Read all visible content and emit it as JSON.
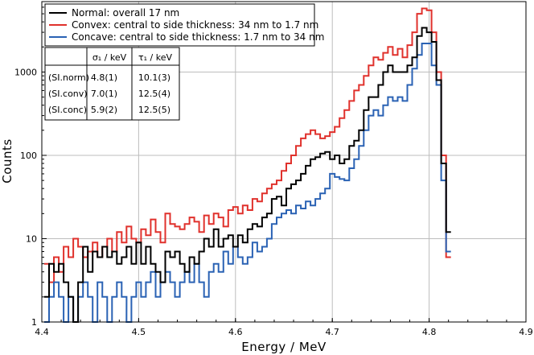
{
  "chart_data": {
    "type": "line",
    "subtype": "step-histogram",
    "xlabel": "Energy / MeV",
    "ylabel": "Counts",
    "xlim": [
      4.4,
      4.9
    ],
    "ylim": [
      1,
      7000
    ],
    "yscale": "log",
    "x_ticks": [
      4.4,
      4.5,
      4.6,
      4.7,
      4.8,
      4.9
    ],
    "x_tick_labels": [
      "4.4",
      "4.5",
      "4.6",
      "4.7",
      "4.8",
      "4.9"
    ],
    "y_ticks": [
      1,
      10,
      100,
      1000
    ],
    "y_tick_labels": [
      "1",
      "10",
      "100",
      "1000"
    ],
    "grid": true,
    "legend_position": "top-left",
    "series": [
      {
        "name": "Normal:  overall 17 nm",
        "color": "#000000",
        "x": [
          4.405,
          4.41,
          4.415,
          4.42,
          4.425,
          4.43,
          4.435,
          4.44,
          4.445,
          4.45,
          4.455,
          4.46,
          4.465,
          4.47,
          4.475,
          4.48,
          4.485,
          4.49,
          4.495,
          4.5,
          4.505,
          4.51,
          4.515,
          4.52,
          4.525,
          4.53,
          4.535,
          4.54,
          4.545,
          4.55,
          4.555,
          4.56,
          4.565,
          4.57,
          4.575,
          4.58,
          4.585,
          4.59,
          4.595,
          4.6,
          4.605,
          4.61,
          4.615,
          4.62,
          4.625,
          4.63,
          4.635,
          4.64,
          4.645,
          4.65,
          4.655,
          4.66,
          4.665,
          4.67,
          4.675,
          4.68,
          4.685,
          4.69,
          4.695,
          4.7,
          4.705,
          4.71,
          4.715,
          4.72,
          4.725,
          4.73,
          4.735,
          4.74,
          4.745,
          4.75,
          4.755,
          4.76,
          4.765,
          4.77,
          4.775,
          4.78,
          4.785,
          4.79,
          4.795,
          4.8,
          4.805,
          4.81,
          4.815,
          4.82
        ],
        "values": [
          2,
          5,
          4,
          5,
          3,
          2,
          1,
          3,
          8,
          4,
          7,
          6,
          8,
          6,
          7,
          5,
          6,
          8,
          5,
          9,
          5,
          8,
          5,
          4,
          3,
          7,
          6,
          7,
          5,
          4,
          6,
          5,
          7,
          10,
          8,
          13,
          8,
          10,
          11,
          8,
          11,
          9,
          13,
          15,
          14,
          18,
          20,
          30,
          32,
          25,
          40,
          45,
          50,
          60,
          75,
          90,
          95,
          105,
          110,
          90,
          100,
          80,
          90,
          130,
          150,
          200,
          350,
          500,
          500,
          700,
          1000,
          1200,
          1000,
          1000,
          1000,
          1200,
          1500,
          2700,
          3400,
          3000,
          2300,
          800,
          80,
          12
        ]
      },
      {
        "name": "Convex:  central to side thickness: 34 nm to 1.7 nm",
        "color": "#e0312c",
        "x": [
          4.405,
          4.41,
          4.415,
          4.42,
          4.425,
          4.43,
          4.435,
          4.44,
          4.445,
          4.45,
          4.455,
          4.46,
          4.465,
          4.47,
          4.475,
          4.48,
          4.485,
          4.49,
          4.495,
          4.5,
          4.505,
          4.51,
          4.515,
          4.52,
          4.525,
          4.53,
          4.535,
          4.54,
          4.545,
          4.55,
          4.555,
          4.56,
          4.565,
          4.57,
          4.575,
          4.58,
          4.585,
          4.59,
          4.595,
          4.6,
          4.605,
          4.61,
          4.615,
          4.62,
          4.625,
          4.63,
          4.635,
          4.64,
          4.645,
          4.65,
          4.655,
          4.66,
          4.665,
          4.67,
          4.675,
          4.68,
          4.685,
          4.69,
          4.695,
          4.7,
          4.705,
          4.71,
          4.715,
          4.72,
          4.725,
          4.73,
          4.735,
          4.74,
          4.745,
          4.75,
          4.755,
          4.76,
          4.765,
          4.77,
          4.775,
          4.78,
          4.785,
          4.79,
          4.795,
          4.8,
          4.805,
          4.81,
          4.815,
          4.82
        ],
        "values": [
          5,
          3,
          6,
          4,
          8,
          6,
          10,
          8,
          6,
          7,
          9,
          6,
          8,
          10,
          7,
          12,
          9,
          14,
          10,
          9,
          13,
          11,
          17,
          12,
          9,
          20,
          15,
          14,
          13,
          15,
          18,
          16,
          12,
          19,
          15,
          20,
          18,
          14,
          22,
          24,
          20,
          25,
          22,
          30,
          28,
          35,
          40,
          45,
          50,
          65,
          80,
          100,
          130,
          160,
          180,
          200,
          180,
          160,
          170,
          190,
          220,
          280,
          350,
          450,
          600,
          700,
          900,
          1200,
          1500,
          1400,
          1700,
          2000,
          1600,
          1900,
          1500,
          2100,
          3000,
          5000,
          5800,
          5500,
          3000,
          1000,
          100,
          6
        ]
      },
      {
        "name": "Concave: central to side thickness: 1.7 nm to 34 nm",
        "color": "#2a62b4",
        "x": [
          4.405,
          4.41,
          4.415,
          4.42,
          4.425,
          4.43,
          4.435,
          4.44,
          4.445,
          4.45,
          4.455,
          4.46,
          4.465,
          4.47,
          4.475,
          4.48,
          4.485,
          4.49,
          4.495,
          4.5,
          4.505,
          4.51,
          4.515,
          4.52,
          4.525,
          4.53,
          4.535,
          4.54,
          4.545,
          4.55,
          4.555,
          4.56,
          4.565,
          4.57,
          4.575,
          4.58,
          4.585,
          4.59,
          4.595,
          4.6,
          4.605,
          4.61,
          4.615,
          4.62,
          4.625,
          4.63,
          4.635,
          4.64,
          4.645,
          4.65,
          4.655,
          4.66,
          4.665,
          4.67,
          4.675,
          4.68,
          4.685,
          4.69,
          4.695,
          4.7,
          4.705,
          4.71,
          4.715,
          4.72,
          4.725,
          4.73,
          4.735,
          4.74,
          4.745,
          4.75,
          4.755,
          4.76,
          4.765,
          4.77,
          4.775,
          4.78,
          4.785,
          4.79,
          4.795,
          4.8,
          4.805,
          4.81,
          4.815,
          4.82
        ],
        "values": [
          1,
          2,
          3,
          2,
          1,
          2,
          1,
          2,
          3,
          2,
          1,
          3,
          2,
          1,
          2,
          3,
          2,
          1,
          2,
          3,
          2,
          3,
          4,
          2,
          3,
          4,
          3,
          2,
          3,
          4,
          3,
          5,
          3,
          2,
          4,
          5,
          4,
          7,
          5,
          8,
          6,
          5,
          6,
          9,
          7,
          8,
          10,
          15,
          18,
          20,
          22,
          20,
          25,
          23,
          28,
          25,
          30,
          35,
          40,
          60,
          55,
          52,
          50,
          70,
          90,
          130,
          200,
          300,
          350,
          300,
          400,
          500,
          450,
          500,
          450,
          700,
          1100,
          1600,
          2200,
          2200,
          1200,
          700,
          50,
          7
        ]
      }
    ],
    "legend": [
      "Normal:  overall 17 nm",
      "Convex:  central to side thickness: 34 nm to 1.7 nm",
      "Concave: central to side thickness: 1.7 nm to 34 nm"
    ],
    "table": {
      "headers": [
        "",
        "σ₁ / keV",
        "τ₁ / keV"
      ],
      "rows": [
        [
          "(SI.norm)",
          "4.8(1)",
          "10.1(3)"
        ],
        [
          "(SI.conv)",
          "7.0(1)",
          "12.5(4)"
        ],
        [
          "(SI.conc)",
          "5.9(2)",
          "12.5(5)"
        ]
      ]
    }
  }
}
